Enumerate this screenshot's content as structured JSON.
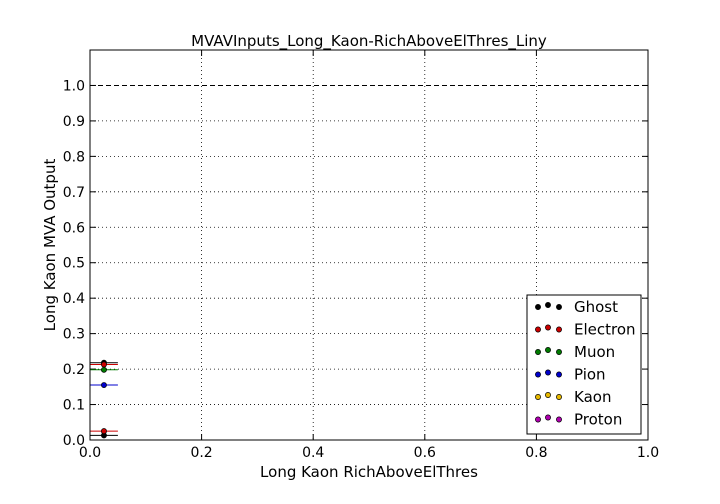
{
  "chart_data": {
    "type": "scatter",
    "title": "MVAVInputs_Long_Kaon-RichAboveElThres_Liny",
    "xlabel": "Long Kaon RichAboveElThres",
    "ylabel": "Long Kaon MVA Output",
    "xlim": [
      0.0,
      1.0
    ],
    "ylim": [
      0.0,
      1.1
    ],
    "xticks": [
      "0.0",
      "0.2",
      "0.4",
      "0.6",
      "0.8",
      "1.0"
    ],
    "yticks": [
      "0.0",
      "0.1",
      "0.2",
      "0.3",
      "0.4",
      "0.5",
      "0.6",
      "0.7",
      "0.8",
      "0.9",
      "1.0"
    ],
    "grid": true,
    "reference_line_y": 1.0,
    "legend_position": "lower-right",
    "series": [
      {
        "name": "Ghost",
        "color": "#000000",
        "points": [
          {
            "x": 0.025,
            "y": 0.013,
            "xerr": 0.025
          },
          {
            "x": 0.025,
            "y": 0.218,
            "xerr": 0.025
          }
        ]
      },
      {
        "name": "Electron",
        "color": "#cc0000",
        "points": [
          {
            "x": 0.025,
            "y": 0.025,
            "xerr": 0.025
          },
          {
            "x": 0.025,
            "y": 0.213,
            "xerr": 0.025
          }
        ]
      },
      {
        "name": "Muon",
        "color": "#007a00",
        "points": [
          {
            "x": 0.025,
            "y": 0.198,
            "xerr": 0.025
          }
        ]
      },
      {
        "name": "Pion",
        "color": "#0000cc",
        "points": [
          {
            "x": 0.025,
            "y": 0.155,
            "xerr": 0.025
          }
        ]
      },
      {
        "name": "Kaon",
        "color": "#e6b800",
        "points": []
      },
      {
        "name": "Proton",
        "color": "#b000b0",
        "points": []
      }
    ]
  }
}
